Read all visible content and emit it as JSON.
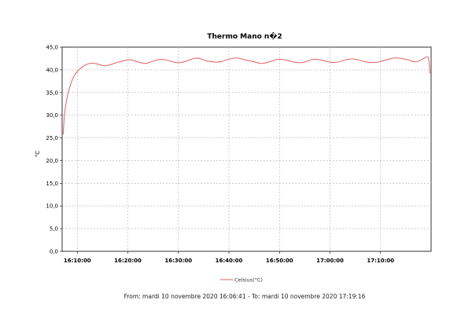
{
  "chart_data": {
    "type": "line",
    "title": "Thermo Mano n�2",
    "ylabel": "°C",
    "ylim": [
      0,
      45
    ],
    "y_ticks": [
      0,
      5,
      10,
      15,
      20,
      25,
      30,
      35,
      40,
      45
    ],
    "y_tick_labels": [
      "0,0",
      "5,0",
      "10,0",
      "15,0",
      "20,0",
      "25,0",
      "30,0",
      "35,0",
      "40,0",
      "45,0"
    ],
    "x_ticks": [
      {
        "min": 9.5,
        "label": "16:10:00"
      },
      {
        "min": 19.5,
        "label": "16:20:00"
      },
      {
        "min": 29.5,
        "label": "16:30:00"
      },
      {
        "min": 39.5,
        "label": "16:40:00"
      },
      {
        "min": 49.5,
        "label": "16:50:00"
      },
      {
        "min": 59.5,
        "label": "17:00:00"
      },
      {
        "min": 69.5,
        "label": "17:10:00"
      }
    ],
    "xlim": [
      6.5,
      79.5
    ],
    "grid": true,
    "legend": "bottom-center",
    "series": [
      {
        "name": "Celsius(°C)",
        "color": "#e06060",
        "x_minutes_from_1600": [
          6.7,
          7.0,
          7.5,
          8.0,
          8.5,
          9.0,
          9.5,
          10.0,
          10.5,
          11.0,
          12.0,
          13.0,
          14.0,
          15.0,
          16.0,
          17.0,
          18.0,
          19.0,
          20.0,
          21.0,
          22.0,
          23.0,
          24.0,
          25.0,
          26.0,
          27.0,
          28.0,
          29.0,
          30.0,
          31.0,
          32.0,
          33.0,
          34.0,
          35.0,
          36.0,
          37.0,
          38.0,
          39.0,
          40.0,
          41.0,
          42.0,
          43.0,
          44.0,
          45.0,
          46.0,
          47.0,
          48.0,
          49.0,
          50.0,
          51.0,
          52.0,
          53.0,
          54.0,
          55.0,
          56.0,
          57.0,
          58.0,
          59.0,
          60.0,
          61.0,
          62.0,
          63.0,
          64.0,
          65.0,
          66.0,
          67.0,
          68.0,
          69.0,
          70.0,
          71.0,
          72.0,
          73.0,
          74.0,
          75.0,
          76.0,
          77.0,
          78.0,
          78.6,
          79.0,
          79.3
        ],
        "values": [
          25.8,
          30.5,
          34.0,
          36.2,
          37.8,
          38.9,
          39.6,
          40.2,
          40.6,
          41.0,
          41.4,
          41.4,
          41.1,
          40.9,
          41.1,
          41.5,
          41.8,
          42.1,
          42.2,
          41.9,
          41.6,
          41.4,
          41.7,
          42.1,
          42.3,
          42.2,
          41.9,
          41.6,
          41.6,
          41.9,
          42.3,
          42.6,
          42.4,
          42.0,
          41.8,
          41.7,
          41.8,
          42.2,
          42.5,
          42.6,
          42.4,
          42.1,
          41.9,
          41.6,
          41.4,
          41.6,
          41.9,
          42.3,
          42.3,
          42.1,
          41.8,
          41.6,
          41.6,
          41.9,
          42.3,
          42.3,
          42.1,
          41.8,
          41.6,
          41.7,
          42.0,
          42.3,
          42.4,
          42.2,
          41.9,
          41.7,
          41.6,
          41.7,
          42.0,
          42.3,
          42.6,
          42.6,
          42.4,
          42.2,
          41.8,
          41.9,
          42.5,
          42.8,
          42.5,
          39.2
        ]
      }
    ]
  },
  "footer": {
    "range_text": "From: mardi 10 novembre 2020 16:06:41  -  To: mardi 10 novembre 2020 17:19:16"
  }
}
